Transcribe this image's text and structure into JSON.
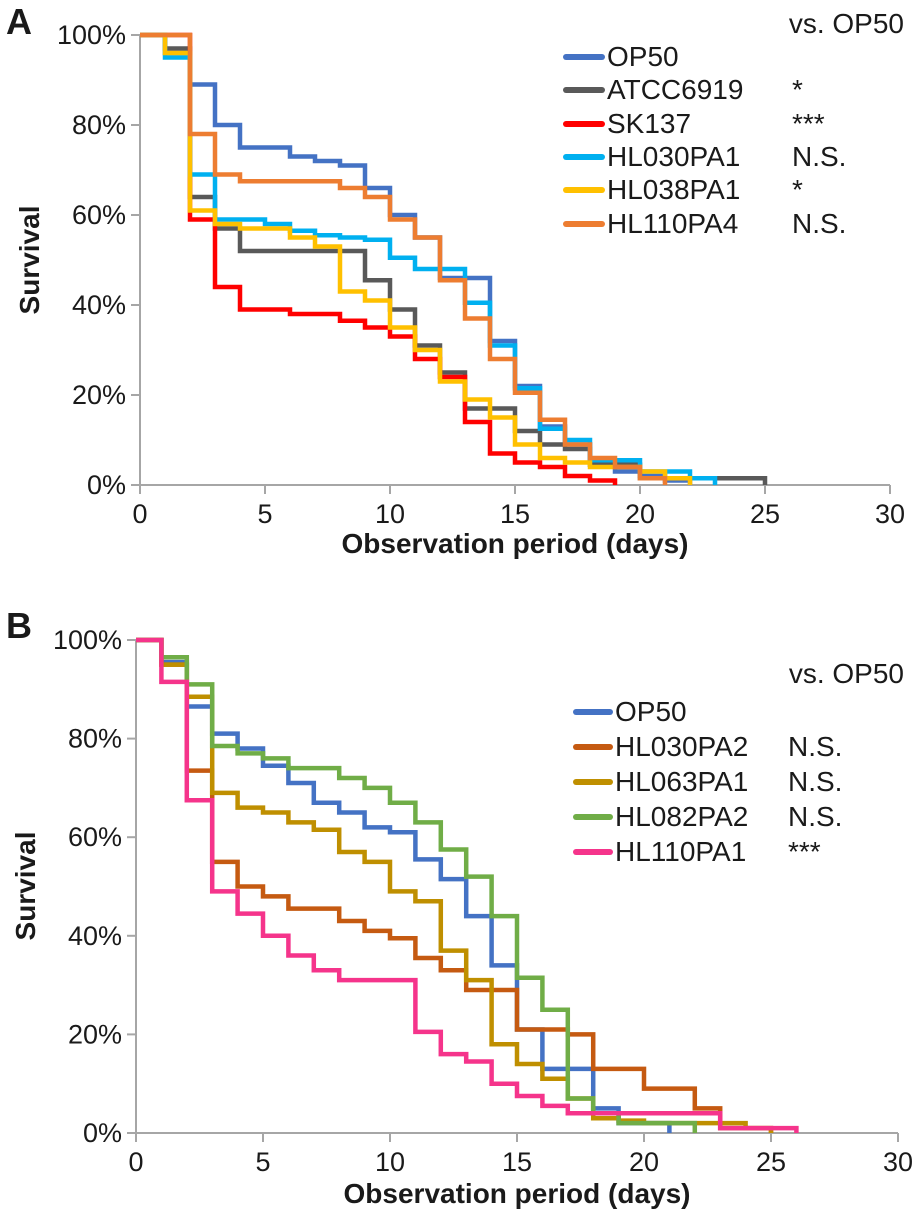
{
  "figure_title": "",
  "chart_data": [
    {
      "type": "line",
      "subtype": "kaplan-meier-step-survival",
      "panel_label": "A",
      "legend_header": "vs. OP50",
      "xlabel": "Observation period (days)",
      "ylabel": "Survival",
      "xlim": [
        0,
        30
      ],
      "ylim": [
        0,
        100
      ],
      "x_ticks": [
        0,
        5,
        10,
        15,
        20,
        25,
        30
      ],
      "y_ticks": [
        0,
        20,
        40,
        60,
        80,
        100
      ],
      "y_tick_suffix": "%",
      "grid": false,
      "legend_position": "top-right-inside",
      "axis_color": "#a6a6a6",
      "series": [
        {
          "name": "OP50",
          "color": "#4472C4",
          "significance_vs_op50": "",
          "steps": [
            [
              0,
              100
            ],
            [
              1,
              96
            ],
            [
              2,
              89
            ],
            [
              3,
              80
            ],
            [
              4,
              75
            ],
            [
              6,
              73
            ],
            [
              7,
              72
            ],
            [
              8,
              71
            ],
            [
              9,
              66
            ],
            [
              10,
              60
            ],
            [
              11,
              55
            ],
            [
              12,
              46
            ],
            [
              14,
              32
            ],
            [
              15,
              22
            ],
            [
              16,
              13
            ],
            [
              17,
              9
            ],
            [
              18,
              5
            ],
            [
              19,
              3
            ],
            [
              20,
              2
            ],
            [
              21,
              1
            ],
            [
              22,
              0
            ]
          ]
        },
        {
          "name": "ATCC6919",
          "color": "#595959",
          "significance_vs_op50": "*",
          "steps": [
            [
              0,
              100
            ],
            [
              1,
              97
            ],
            [
              2,
              64
            ],
            [
              3,
              57
            ],
            [
              4,
              52
            ],
            [
              9,
              45.5
            ],
            [
              10,
              39
            ],
            [
              11,
              31
            ],
            [
              12,
              25
            ],
            [
              13,
              17
            ],
            [
              15,
              12
            ],
            [
              16,
              9
            ],
            [
              17,
              8
            ],
            [
              18,
              4.5
            ],
            [
              20,
              1.5
            ],
            [
              25,
              0
            ]
          ]
        },
        {
          "name": "SK137",
          "color": "#FF0000",
          "significance_vs_op50": "***",
          "steps": [
            [
              0,
              100
            ],
            [
              2,
              59
            ],
            [
              3,
              44
            ],
            [
              4,
              39
            ],
            [
              6,
              38
            ],
            [
              8,
              36.5
            ],
            [
              9,
              35
            ],
            [
              10,
              33
            ],
            [
              11,
              28
            ],
            [
              12,
              24
            ],
            [
              13,
              14
            ],
            [
              14,
              7
            ],
            [
              15,
              5
            ],
            [
              16,
              4
            ],
            [
              17,
              2
            ],
            [
              18,
              1
            ],
            [
              19,
              0
            ]
          ]
        },
        {
          "name": "HL030PA1",
          "color": "#00B0F0",
          "significance_vs_op50": "N.S.",
          "steps": [
            [
              0,
              100
            ],
            [
              1,
              95
            ],
            [
              2,
              69
            ],
            [
              3,
              59
            ],
            [
              5,
              58
            ],
            [
              6,
              56.5
            ],
            [
              7,
              55.5
            ],
            [
              8,
              55
            ],
            [
              9,
              54.5
            ],
            [
              10,
              50.5
            ],
            [
              11,
              48
            ],
            [
              13,
              40.5
            ],
            [
              14,
              31
            ],
            [
              15,
              21.5
            ],
            [
              16,
              12.5
            ],
            [
              17,
              10
            ],
            [
              18,
              5.5
            ],
            [
              20,
              3
            ],
            [
              22,
              1.5
            ],
            [
              23,
              0
            ]
          ]
        },
        {
          "name": "HL038PA1",
          "color": "#FFC000",
          "significance_vs_op50": "*",
          "steps": [
            [
              0,
              100
            ],
            [
              1,
              96
            ],
            [
              2,
              61
            ],
            [
              3,
              58
            ],
            [
              4,
              57
            ],
            [
              6,
              55
            ],
            [
              7,
              53
            ],
            [
              8,
              43
            ],
            [
              9,
              41
            ],
            [
              10,
              35
            ],
            [
              11,
              30
            ],
            [
              12,
              23
            ],
            [
              13,
              19
            ],
            [
              14,
              15
            ],
            [
              15,
              9
            ],
            [
              16,
              6
            ],
            [
              17,
              5
            ],
            [
              18,
              4
            ],
            [
              20,
              3
            ],
            [
              21,
              1.5
            ],
            [
              22,
              0
            ]
          ]
        },
        {
          "name": "HL110PA4",
          "color": "#ED7D31",
          "significance_vs_op50": "N.S.",
          "steps": [
            [
              0,
              100
            ],
            [
              2,
              78
            ],
            [
              3,
              69
            ],
            [
              4,
              67.5
            ],
            [
              8,
              66
            ],
            [
              9,
              64
            ],
            [
              10,
              59
            ],
            [
              11,
              55
            ],
            [
              12,
              45.5
            ],
            [
              13,
              37
            ],
            [
              14,
              28
            ],
            [
              15,
              20.5
            ],
            [
              16,
              14.5
            ],
            [
              17,
              9
            ],
            [
              18,
              6
            ],
            [
              19,
              4
            ],
            [
              20,
              1.5
            ],
            [
              21,
              0
            ]
          ]
        }
      ]
    },
    {
      "type": "line",
      "subtype": "kaplan-meier-step-survival",
      "panel_label": "B",
      "legend_header": "vs. OP50",
      "xlabel": "Observation period (days)",
      "ylabel": "Survival",
      "xlim": [
        0,
        30
      ],
      "ylim": [
        0,
        100
      ],
      "x_ticks": [
        0,
        5,
        10,
        15,
        20,
        25,
        30
      ],
      "y_ticks": [
        0,
        20,
        40,
        60,
        80,
        100
      ],
      "y_tick_suffix": "%",
      "grid": false,
      "legend_position": "top-right-inside",
      "axis_color": "#a6a6a6",
      "series": [
        {
          "name": "OP50",
          "color": "#4472C4",
          "significance_vs_op50": "",
          "steps": [
            [
              0,
              100
            ],
            [
              1,
              95.5
            ],
            [
              2,
              86.5
            ],
            [
              3,
              81
            ],
            [
              4,
              78
            ],
            [
              5,
              74.5
            ],
            [
              6,
              71
            ],
            [
              7,
              67
            ],
            [
              8,
              65
            ],
            [
              9,
              62
            ],
            [
              10,
              61
            ],
            [
              11,
              55.5
            ],
            [
              12,
              51.5
            ],
            [
              13,
              44
            ],
            [
              14,
              34
            ],
            [
              15,
              21
            ],
            [
              16,
              13
            ],
            [
              18,
              5
            ],
            [
              19,
              2
            ],
            [
              21,
              0
            ]
          ]
        },
        {
          "name": "HL030PA2",
          "color": "#C55A11",
          "significance_vs_op50": "N.S.",
          "steps": [
            [
              0,
              100
            ],
            [
              1,
              95
            ],
            [
              2,
              73.5
            ],
            [
              3,
              55
            ],
            [
              4,
              50
            ],
            [
              5,
              48
            ],
            [
              6,
              45.5
            ],
            [
              8,
              43
            ],
            [
              9,
              41
            ],
            [
              10,
              39.5
            ],
            [
              11,
              35.5
            ],
            [
              12,
              33
            ],
            [
              13,
              29
            ],
            [
              15,
              21
            ],
            [
              17,
              20
            ],
            [
              18,
              13
            ],
            [
              20,
              9
            ],
            [
              22,
              5
            ],
            [
              23,
              1
            ],
            [
              25,
              0
            ]
          ]
        },
        {
          "name": "HL063PA1",
          "color": "#BF8F00",
          "significance_vs_op50": "N.S.",
          "steps": [
            [
              0,
              100
            ],
            [
              1,
              95
            ],
            [
              2,
              88.5
            ],
            [
              3,
              69
            ],
            [
              4,
              66
            ],
            [
              5,
              65
            ],
            [
              6,
              63
            ],
            [
              7,
              61.5
            ],
            [
              8,
              57
            ],
            [
              9,
              55
            ],
            [
              10,
              49
            ],
            [
              11,
              47
            ],
            [
              12,
              37
            ],
            [
              13,
              31
            ],
            [
              14,
              18
            ],
            [
              15,
              14
            ],
            [
              16,
              11
            ],
            [
              17,
              7
            ],
            [
              18,
              3
            ],
            [
              19,
              2.5
            ],
            [
              20,
              2
            ],
            [
              24,
              1
            ],
            [
              25,
              0
            ]
          ]
        },
        {
          "name": "HL082PA2",
          "color": "#70AD47",
          "significance_vs_op50": "N.S.",
          "steps": [
            [
              0,
              100
            ],
            [
              1,
              96.5
            ],
            [
              2,
              91
            ],
            [
              3,
              78.5
            ],
            [
              4,
              77
            ],
            [
              5,
              76
            ],
            [
              6,
              74
            ],
            [
              8,
              72
            ],
            [
              9,
              70
            ],
            [
              10,
              67
            ],
            [
              11,
              63
            ],
            [
              12,
              57.5
            ],
            [
              13,
              52
            ],
            [
              14,
              44
            ],
            [
              15,
              31.5
            ],
            [
              16,
              25
            ],
            [
              17,
              7
            ],
            [
              18,
              4
            ],
            [
              19,
              2
            ],
            [
              22,
              0
            ]
          ]
        },
        {
          "name": "HL110PA1",
          "color": "#F5348B",
          "significance_vs_op50": "***",
          "steps": [
            [
              0,
              100
            ],
            [
              1,
              91.5
            ],
            [
              2,
              67.5
            ],
            [
              3,
              49
            ],
            [
              4,
              44.5
            ],
            [
              5,
              40
            ],
            [
              6,
              36
            ],
            [
              7,
              33
            ],
            [
              8,
              31
            ],
            [
              11,
              20.5
            ],
            [
              12,
              16
            ],
            [
              13,
              14.5
            ],
            [
              14,
              10
            ],
            [
              15,
              7.5
            ],
            [
              16,
              5.5
            ],
            [
              17,
              4
            ],
            [
              23,
              1
            ],
            [
              26,
              0
            ]
          ]
        }
      ]
    }
  ]
}
